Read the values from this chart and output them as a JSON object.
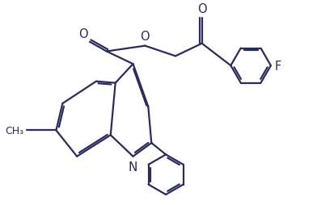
{
  "bg_color": "#ffffff",
  "line_color": "#2b2b5e",
  "line_width": 1.6,
  "font_size": 9.5,
  "figsize": [
    3.92,
    2.55
  ],
  "dpi": 100,
  "xlim": [
    0,
    9.8
  ],
  "ylim": [
    0,
    6.3
  ]
}
